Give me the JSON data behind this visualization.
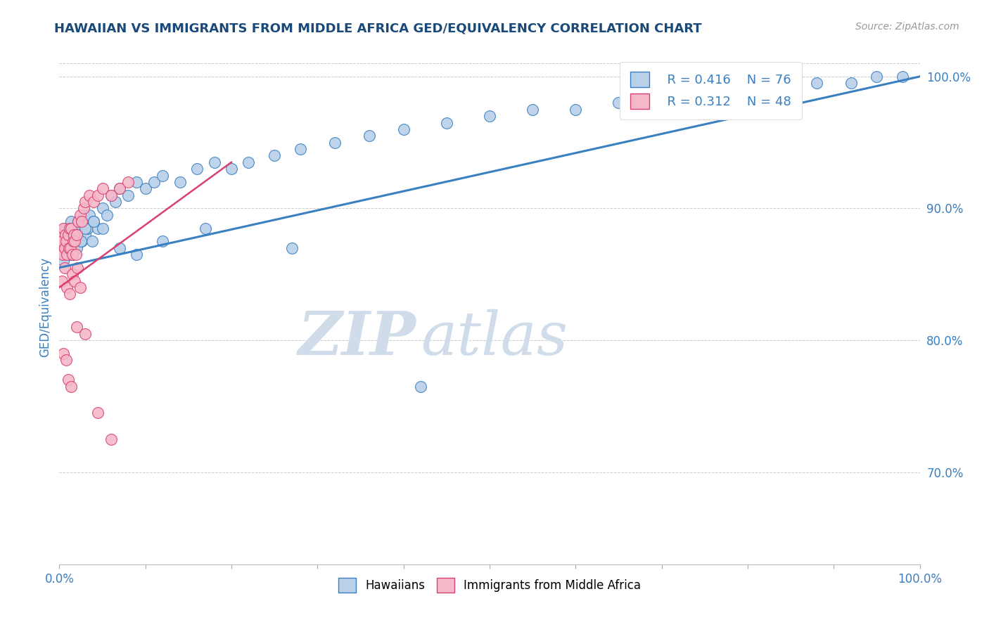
{
  "title": "HAWAIIAN VS IMMIGRANTS FROM MIDDLE AFRICA GED/EQUIVALENCY CORRELATION CHART",
  "source": "Source: ZipAtlas.com",
  "ylabel": "GED/Equivalency",
  "xlim": [
    0.0,
    100.0
  ],
  "ylim": [
    63.0,
    102.0
  ],
  "yticks_right": [
    70.0,
    80.0,
    90.0,
    100.0
  ],
  "ytick_labels_right": [
    "70.0%",
    "80.0%",
    "90.0%",
    "100.0%"
  ],
  "legend_r1": "R = 0.416",
  "legend_n1": "N = 76",
  "legend_r2": "R = 0.312",
  "legend_n2": "N = 48",
  "blue_color": "#b8d0e8",
  "pink_color": "#f5b8c8",
  "blue_line_color": "#3a7fc1",
  "pink_line_color": "#d94070",
  "title_color": "#1a4a7a",
  "axis_label_color": "#3a7fc1",
  "watermark_color": "#d0dcea",
  "blue_line_x0": 0.0,
  "blue_line_y0": 85.5,
  "blue_line_x1": 100.0,
  "blue_line_y1": 100.0,
  "pink_line_x0": 0.0,
  "pink_line_y0": 84.0,
  "pink_line_x1": 20.0,
  "pink_line_y1": 93.5,
  "hawaiians_x": [
    0.3,
    0.4,
    0.5,
    0.6,
    0.7,
    0.8,
    0.9,
    1.0,
    1.1,
    1.2,
    1.3,
    1.4,
    1.5,
    1.6,
    1.7,
    1.8,
    1.9,
    2.0,
    2.1,
    2.2,
    2.4,
    2.6,
    2.8,
    3.0,
    3.2,
    3.5,
    3.8,
    4.0,
    4.5,
    5.0,
    5.5,
    6.0,
    6.5,
    7.0,
    8.0,
    9.0,
    10.0,
    11.0,
    12.0,
    14.0,
    16.0,
    18.0,
    20.0,
    22.0,
    25.0,
    28.0,
    32.0,
    36.0,
    40.0,
    45.0,
    50.0,
    55.0,
    60.0,
    65.0,
    70.0,
    75.0,
    78.0,
    82.0,
    88.0,
    92.0,
    95.0,
    98.0,
    0.5,
    1.0,
    1.5,
    2.0,
    2.5,
    3.0,
    4.0,
    5.0,
    7.0,
    9.0,
    12.0,
    17.0,
    27.0,
    42.0
  ],
  "hawaiians_y": [
    87.5,
    88.0,
    87.0,
    86.5,
    88.5,
    87.0,
    87.5,
    88.0,
    86.5,
    88.0,
    87.5,
    89.0,
    86.5,
    88.5,
    87.0,
    87.5,
    88.0,
    87.0,
    88.5,
    89.0,
    88.0,
    87.5,
    89.5,
    88.0,
    88.5,
    89.5,
    87.5,
    89.0,
    88.5,
    90.0,
    89.5,
    91.0,
    90.5,
    91.5,
    91.0,
    92.0,
    91.5,
    92.0,
    92.5,
    92.0,
    93.0,
    93.5,
    93.0,
    93.5,
    94.0,
    94.5,
    95.0,
    95.5,
    96.0,
    96.5,
    97.0,
    97.5,
    97.5,
    98.0,
    98.5,
    98.5,
    99.0,
    99.0,
    99.5,
    99.5,
    100.0,
    100.0,
    86.0,
    87.0,
    86.5,
    88.0,
    87.5,
    88.5,
    89.0,
    88.5,
    87.0,
    86.5,
    87.5,
    88.5,
    87.0,
    76.5
  ],
  "midafrica_x": [
    0.1,
    0.2,
    0.3,
    0.4,
    0.5,
    0.6,
    0.7,
    0.8,
    0.9,
    1.0,
    1.1,
    1.2,
    1.3,
    1.4,
    1.5,
    1.6,
    1.7,
    1.8,
    1.9,
    2.0,
    2.2,
    2.4,
    2.6,
    2.8,
    3.0,
    3.5,
    4.0,
    4.5,
    5.0,
    6.0,
    7.0,
    8.0,
    0.3,
    0.6,
    0.9,
    1.2,
    1.5,
    1.8,
    2.1,
    2.4,
    0.5,
    0.8,
    1.0,
    1.4,
    2.0,
    3.0,
    4.5,
    6.0
  ],
  "midafrica_y": [
    87.0,
    88.0,
    87.5,
    86.5,
    88.5,
    87.0,
    88.0,
    87.5,
    86.5,
    88.0,
    87.0,
    88.5,
    87.0,
    88.5,
    86.5,
    87.5,
    88.0,
    87.5,
    86.5,
    88.0,
    89.0,
    89.5,
    89.0,
    90.0,
    90.5,
    91.0,
    90.5,
    91.0,
    91.5,
    91.0,
    91.5,
    92.0,
    84.5,
    85.5,
    84.0,
    83.5,
    85.0,
    84.5,
    85.5,
    84.0,
    79.0,
    78.5,
    77.0,
    76.5,
    81.0,
    80.5,
    74.5,
    72.5
  ]
}
